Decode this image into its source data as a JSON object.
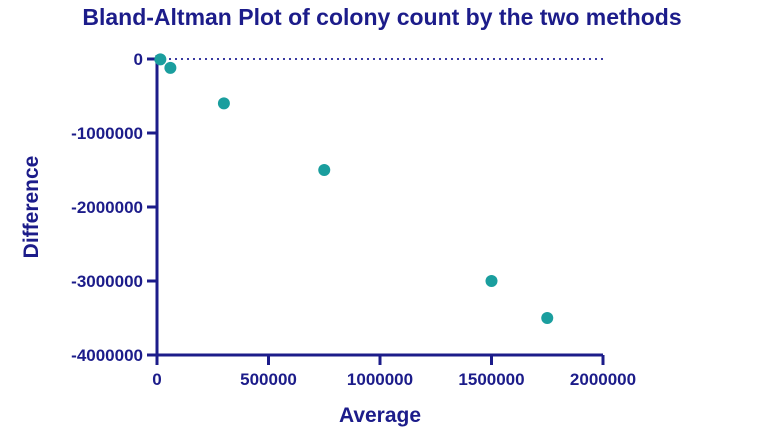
{
  "chart_data": {
    "type": "scatter",
    "title": "Bland-Altman Plot of colony count by the two methods",
    "xlabel": "Average",
    "ylabel": "Difference",
    "xlim": [
      0,
      2000000
    ],
    "ylim": [
      -4000000,
      0
    ],
    "xticks": [
      0,
      500000,
      1000000,
      1500000,
      2000000
    ],
    "xtick_labels": [
      "0",
      "500000",
      "1000000",
      "1500000",
      "2000000"
    ],
    "yticks": [
      0,
      -1000000,
      -2000000,
      -3000000,
      -4000000
    ],
    "ytick_labels": [
      "0",
      "-1000000",
      "-2000000",
      "-3000000",
      "-4000000"
    ],
    "reference_line": {
      "y": 0,
      "style": "dotted"
    },
    "grid": false,
    "legend": "none",
    "series": [
      {
        "points": [
          {
            "x": 15000,
            "y": -5000
          },
          {
            "x": 60000,
            "y": -120000
          },
          {
            "x": 300000,
            "y": -600000
          },
          {
            "x": 750000,
            "y": -1500000
          },
          {
            "x": 1500000,
            "y": -3000000
          },
          {
            "x": 1750000,
            "y": -3500000
          }
        ]
      }
    ],
    "colors": {
      "axis": "#1c1c8a",
      "text": "#1c1c8a",
      "marker": "#1a9e9e",
      "reference": "#3a3aa0"
    }
  }
}
